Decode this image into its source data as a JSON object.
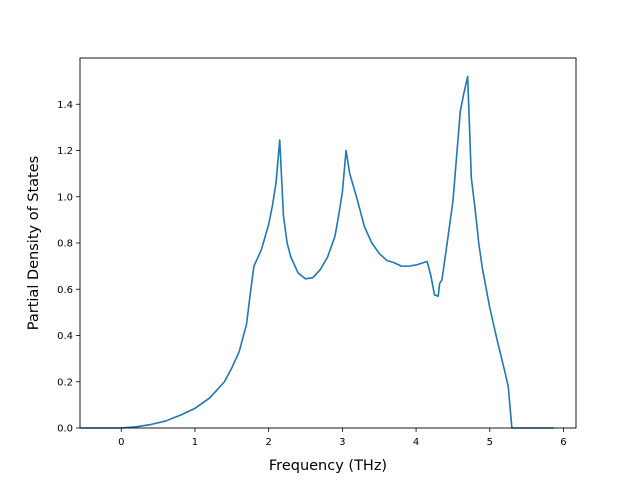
{
  "chart_data": {
    "type": "line",
    "title": "",
    "xlabel": "Frequency (THz)",
    "ylabel": "Partial Density of States",
    "xlim": [
      -0.56,
      6.17
    ],
    "ylim": [
      0,
      1.6
    ],
    "grid": false,
    "legend": "none",
    "xticks": [
      0,
      1,
      2,
      3,
      4,
      5,
      6
    ],
    "yticks": [
      0.0,
      0.2,
      0.4,
      0.6,
      0.8,
      1.0,
      1.2,
      1.4
    ],
    "colors": {
      "line": "#1f77b4",
      "axes": "#000000",
      "background": "#ffffff"
    },
    "series": [
      {
        "x": [
          -0.55,
          -0.3,
          0.0,
          0.2,
          0.4,
          0.6,
          0.8,
          1.0,
          1.2,
          1.4,
          1.5,
          1.6,
          1.7,
          1.75,
          1.8,
          1.9,
          2.0,
          2.05,
          2.1,
          2.15,
          2.2,
          2.25,
          2.3,
          2.4,
          2.5,
          2.6,
          2.7,
          2.8,
          2.9,
          2.95,
          3.0,
          3.05,
          3.1,
          3.2,
          3.3,
          3.4,
          3.5,
          3.6,
          3.7,
          3.8,
          3.9,
          4.0,
          4.1,
          4.15,
          4.2,
          4.25,
          4.3,
          4.32,
          4.35,
          4.4,
          4.5,
          4.6,
          4.65,
          4.7,
          4.75,
          4.8,
          4.85,
          4.9,
          5.0,
          5.1,
          5.2,
          5.25,
          5.3,
          5.35,
          5.5,
          5.87
        ],
        "y": [
          0.0,
          0.0,
          0.0,
          0.005,
          0.015,
          0.03,
          0.055,
          0.085,
          0.13,
          0.2,
          0.26,
          0.33,
          0.45,
          0.58,
          0.7,
          0.77,
          0.88,
          0.96,
          1.06,
          1.245,
          0.92,
          0.8,
          0.74,
          0.67,
          0.645,
          0.65,
          0.685,
          0.74,
          0.83,
          0.92,
          1.02,
          1.2,
          1.1,
          0.99,
          0.87,
          0.8,
          0.755,
          0.725,
          0.715,
          0.7,
          0.7,
          0.705,
          0.715,
          0.72,
          0.66,
          0.575,
          0.57,
          0.625,
          0.64,
          0.75,
          0.98,
          1.37,
          1.45,
          1.52,
          1.08,
          0.95,
          0.8,
          0.69,
          0.52,
          0.38,
          0.25,
          0.18,
          0.0,
          0.0,
          0.0,
          0.0
        ]
      }
    ]
  }
}
